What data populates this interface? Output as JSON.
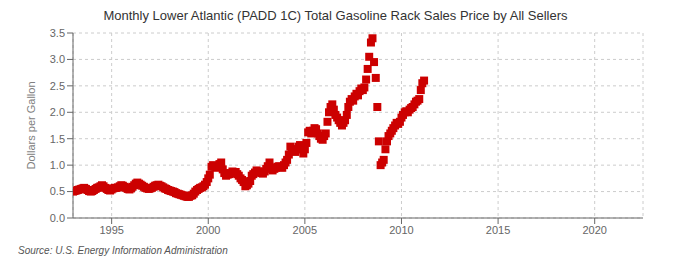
{
  "chart_data": {
    "type": "scatter",
    "title": "Monthly Lower Atlantic (PADD 1C) Total Gasoline Rack Sales Price by All Sellers",
    "y_label": "Dollars per Gallon",
    "annotations": [
      "Source: U.S. Energy Information Administration"
    ],
    "color": "#cc0000",
    "marker": "square",
    "grid": true,
    "xlim": [
      1993.0,
      2022.5
    ],
    "ylim": [
      0.0,
      3.5
    ],
    "xticks": [
      1995,
      2000,
      2005,
      2010,
      2015,
      2020
    ],
    "yticks": [
      {
        "value": 0.0,
        "label": "0.0"
      },
      0.5,
      {
        "value": 1.0,
        "label": "1.0"
      },
      1.5,
      {
        "value": 2.0,
        "label": "2.0"
      },
      2.5,
      {
        "value": 3.0,
        "label": "3.0"
      },
      3.5
    ],
    "x": [
      1993.0,
      1993.08,
      1993.17,
      1993.25,
      1993.33,
      1993.42,
      1993.5,
      1993.58,
      1993.67,
      1993.75,
      1993.83,
      1993.92,
      1994.0,
      1994.08,
      1994.17,
      1994.25,
      1994.33,
      1994.42,
      1994.5,
      1994.58,
      1994.67,
      1994.75,
      1994.83,
      1994.92,
      1995.0,
      1995.08,
      1995.17,
      1995.25,
      1995.33,
      1995.42,
      1995.5,
      1995.58,
      1995.67,
      1995.75,
      1995.83,
      1995.92,
      1996.0,
      1996.08,
      1996.17,
      1996.25,
      1996.33,
      1996.42,
      1996.5,
      1996.58,
      1996.67,
      1996.75,
      1996.83,
      1996.92,
      1997.0,
      1997.08,
      1997.17,
      1997.25,
      1997.33,
      1997.42,
      1997.5,
      1997.58,
      1997.67,
      1997.75,
      1997.83,
      1997.92,
      1998.0,
      1998.08,
      1998.17,
      1998.25,
      1998.33,
      1998.42,
      1998.5,
      1998.58,
      1998.67,
      1998.75,
      1998.83,
      1998.92,
      1999.0,
      1999.08,
      1999.17,
      1999.25,
      1999.33,
      1999.42,
      1999.5,
      1999.58,
      1999.67,
      1999.75,
      1999.83,
      1999.92,
      2000.0,
      2000.08,
      2000.17,
      2000.25,
      2000.33,
      2000.42,
      2000.5,
      2000.58,
      2000.67,
      2000.75,
      2000.83,
      2000.92,
      2001.0,
      2001.08,
      2001.17,
      2001.25,
      2001.33,
      2001.42,
      2001.5,
      2001.58,
      2001.67,
      2001.75,
      2001.83,
      2001.92,
      2002.0,
      2002.08,
      2002.17,
      2002.25,
      2002.33,
      2002.42,
      2002.5,
      2002.58,
      2002.67,
      2002.75,
      2002.83,
      2002.92,
      2003.0,
      2003.08,
      2003.17,
      2003.25,
      2003.33,
      2003.42,
      2003.5,
      2003.58,
      2003.67,
      2003.75,
      2003.83,
      2003.92,
      2004.0,
      2004.08,
      2004.17,
      2004.25,
      2004.33,
      2004.42,
      2004.5,
      2004.58,
      2004.67,
      2004.75,
      2004.83,
      2004.92,
      2005.0,
      2005.08,
      2005.17,
      2005.25,
      2005.33,
      2005.42,
      2005.5,
      2005.58,
      2005.67,
      2005.75,
      2005.83,
      2005.92,
      2006.0,
      2006.08,
      2006.17,
      2006.25,
      2006.33,
      2006.42,
      2006.5,
      2006.58,
      2006.67,
      2006.75,
      2006.83,
      2006.92,
      2007.0,
      2007.08,
      2007.17,
      2007.25,
      2007.33,
      2007.42,
      2007.5,
      2007.58,
      2007.67,
      2007.75,
      2007.83,
      2007.92,
      2008.0,
      2008.08,
      2008.17,
      2008.25,
      2008.33,
      2008.42,
      2008.5,
      2008.58,
      2008.67,
      2008.75,
      2008.83,
      2008.92,
      2009.0,
      2009.08,
      2009.17,
      2009.25,
      2009.33,
      2009.42,
      2009.5,
      2009.58,
      2009.67,
      2009.75,
      2009.83,
      2009.92,
      2010.0,
      2010.08,
      2010.17,
      2010.25,
      2010.33,
      2010.42,
      2010.5,
      2010.58,
      2010.67,
      2010.75,
      2010.83,
      2010.92,
      2011.0,
      2011.08,
      2011.17
    ],
    "values": [
      0.5,
      0.51,
      0.52,
      0.53,
      0.54,
      0.55,
      0.56,
      0.57,
      0.55,
      0.53,
      0.51,
      0.5,
      0.51,
      0.53,
      0.55,
      0.57,
      0.58,
      0.6,
      0.62,
      0.6,
      0.57,
      0.55,
      0.53,
      0.52,
      0.54,
      0.56,
      0.57,
      0.57,
      0.58,
      0.6,
      0.62,
      0.61,
      0.59,
      0.57,
      0.55,
      0.54,
      0.56,
      0.59,
      0.62,
      0.65,
      0.67,
      0.65,
      0.63,
      0.61,
      0.59,
      0.57,
      0.56,
      0.55,
      0.56,
      0.57,
      0.59,
      0.61,
      0.62,
      0.63,
      0.61,
      0.6,
      0.58,
      0.56,
      0.55,
      0.53,
      0.52,
      0.51,
      0.5,
      0.49,
      0.47,
      0.46,
      0.45,
      0.44,
      0.43,
      0.42,
      0.41,
      0.4,
      0.4,
      0.42,
      0.43,
      0.46,
      0.5,
      0.53,
      0.55,
      0.57,
      0.58,
      0.6,
      0.63,
      0.68,
      0.75,
      0.82,
      0.97,
      1.0,
      0.97,
      0.95,
      0.97,
      1.02,
      1.05,
      0.92,
      0.85,
      0.8,
      0.82,
      0.83,
      0.85,
      0.88,
      0.86,
      0.87,
      0.83,
      0.8,
      0.75,
      0.72,
      0.68,
      0.6,
      0.62,
      0.65,
      0.7,
      0.8,
      0.83,
      0.86,
      0.9,
      0.88,
      0.87,
      0.85,
      0.84,
      0.88,
      0.93,
      0.98,
      1.05,
      0.95,
      0.9,
      0.93,
      0.95,
      0.97,
      0.98,
      0.96,
      0.95,
      1.0,
      1.05,
      1.1,
      1.2,
      1.35,
      1.3,
      1.28,
      1.25,
      1.3,
      1.35,
      1.38,
      1.3,
      1.22,
      1.3,
      1.42,
      1.62,
      1.65,
      1.6,
      1.65,
      1.7,
      1.68,
      1.6,
      1.55,
      1.5,
      1.48,
      1.55,
      1.6,
      1.82,
      2.0,
      2.1,
      2.15,
      2.05,
      1.95,
      1.9,
      1.85,
      1.8,
      1.75,
      1.8,
      1.85,
      1.95,
      2.1,
      2.2,
      2.25,
      2.22,
      2.3,
      2.35,
      2.32,
      2.4,
      2.45,
      2.42,
      2.47,
      2.62,
      2.82,
      3.05,
      3.32,
      3.4,
      2.95,
      2.65,
      2.1,
      1.45,
      1.0,
      1.05,
      1.1,
      1.3,
      1.45,
      1.55,
      1.6,
      1.65,
      1.7,
      1.75,
      1.8,
      1.78,
      1.82,
      1.9,
      1.95,
      2.0,
      2.02,
      2.0,
      2.05,
      2.08,
      2.1,
      2.15,
      2.2,
      2.22,
      2.25,
      2.42,
      2.55,
      2.6
    ]
  }
}
